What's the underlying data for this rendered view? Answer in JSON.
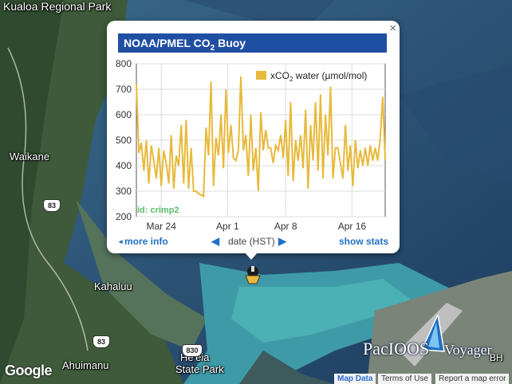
{
  "map_labels": {
    "kualoa": "Kualoa Regional Park",
    "waikane": "Waikane",
    "kahaluu": "Kahaluu",
    "ahuimanu": "Ahuimanu",
    "heeia": "He'eia",
    "state_park": "State Park",
    "hwy_83a": "83",
    "hwy_83b": "83",
    "hwy_830": "830",
    "bh": "BH"
  },
  "popup": {
    "title_prefix": "NOAA/PMEL CO",
    "title_sub": "2",
    "title_suffix": " Buoy",
    "close_glyph": "×",
    "more_info": "more info",
    "date_label": "date (HST)",
    "show_stats": "show stats",
    "left_arrow": "◀",
    "right_arrow": "▶",
    "more_info_arrow": "◂"
  },
  "chart_data": {
    "type": "line",
    "legend": "xCO2 water (µmol/mol)",
    "legend_prefix": "xCO",
    "legend_sub": "2",
    "legend_suffix": " water (µmol/mol)",
    "legend_placement": "top-right",
    "annotation": "id: crimp2",
    "series_color": "#e8b93a",
    "ylim": [
      200,
      800
    ],
    "yticks": [
      "800",
      "700",
      "600",
      "500",
      "400",
      "300",
      "200"
    ],
    "xticks": [
      "Mar 24",
      "Apr 1",
      "Apr 8",
      "Apr 16"
    ],
    "xtick_days": [
      3,
      11,
      18,
      26
    ],
    "grid": true,
    "x_days": [
      0,
      0.3,
      0.6,
      0.9,
      1.2,
      1.5,
      1.8,
      2.1,
      2.4,
      2.7,
      3.0,
      3.3,
      3.6,
      3.9,
      4.2,
      4.5,
      4.8,
      5.1,
      5.4,
      5.7,
      6.0,
      6.3,
      6.6,
      6.9,
      7.2,
      7.5,
      7.8,
      8.1,
      8.4,
      8.7,
      9.0,
      9.3,
      9.6,
      9.9,
      10.2,
      10.5,
      10.8,
      11.1,
      11.4,
      11.7,
      12.0,
      12.3,
      12.6,
      12.9,
      13.2,
      13.5,
      13.8,
      14.1,
      14.4,
      14.7,
      15.0,
      15.3,
      15.6,
      15.9,
      16.2,
      16.5,
      16.8,
      17.1,
      17.4,
      17.7,
      18.0,
      18.3,
      18.6,
      18.9,
      19.2,
      19.5,
      19.8,
      20.1,
      20.4,
      20.7,
      21.0,
      21.3,
      21.6,
      21.9,
      22.2,
      22.5,
      22.8,
      23.1,
      23.4,
      23.7,
      24.0,
      24.3,
      24.6,
      24.9,
      25.2,
      25.5,
      25.8,
      26.1,
      26.4,
      26.7,
      27.0,
      27.3,
      27.6,
      27.9,
      28.2,
      28.5,
      28.8,
      29.1,
      29.4,
      29.7,
      30.0
    ],
    "values": [
      720,
      450,
      490,
      380,
      500,
      330,
      480,
      420,
      350,
      470,
      320,
      460,
      410,
      330,
      520,
      310,
      440,
      400,
      560,
      330,
      580,
      310,
      470,
      300,
      300,
      290,
      285,
      280,
      550,
      440,
      730,
      320,
      510,
      440,
      600,
      390,
      700,
      450,
      560,
      430,
      420,
      460,
      750,
      460,
      520,
      360,
      600,
      380,
      470,
      300,
      610,
      460,
      540,
      470,
      470,
      410,
      480,
      460,
      520,
      430,
      580,
      360,
      650,
      340,
      500,
      420,
      520,
      390,
      620,
      310,
      560,
      420,
      650,
      380,
      680,
      350,
      600,
      440,
      710,
      350,
      470,
      470,
      410,
      350,
      560,
      380,
      480,
      320,
      500,
      390,
      460,
      400,
      470,
      400,
      480,
      420,
      470,
      420,
      510,
      670,
      420
    ]
  },
  "attribution": {
    "google": "Google",
    "map_data": "Map Data",
    "terms": "Terms of Use",
    "report": "Report a map error"
  },
  "logo": {
    "part1": "PacIOOS",
    "part2": "Voyager"
  }
}
